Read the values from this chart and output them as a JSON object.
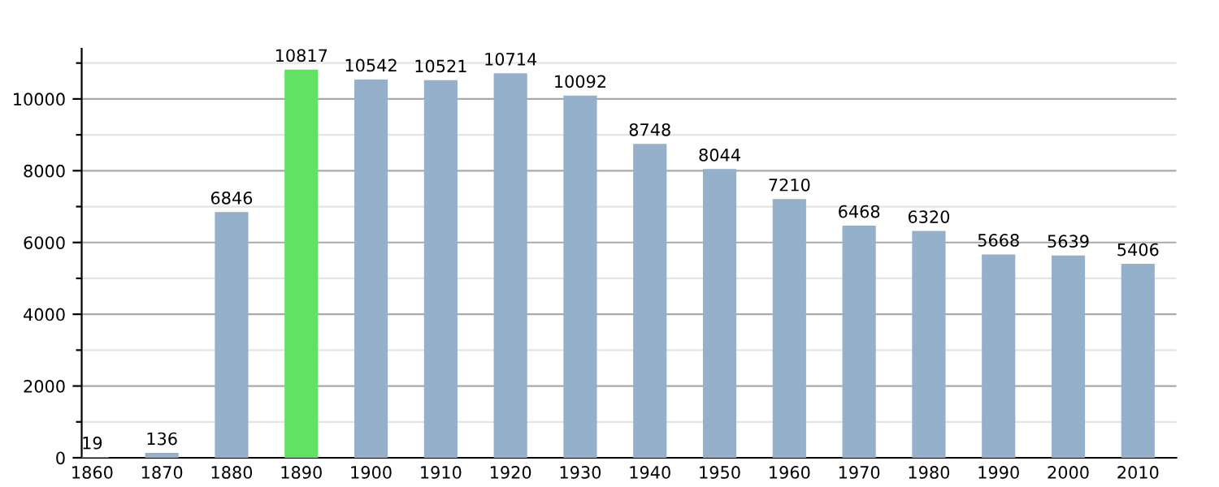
{
  "chart_data": {
    "type": "bar",
    "categories": [
      "1860",
      "1870",
      "1880",
      "1890",
      "1900",
      "1910",
      "1920",
      "1930",
      "1940",
      "1950",
      "1960",
      "1970",
      "1980",
      "1990",
      "2000",
      "2010"
    ],
    "values": [
      19,
      136,
      6846,
      10817,
      10542,
      10521,
      10714,
      10092,
      8748,
      8044,
      7210,
      6468,
      6320,
      5668,
      5639,
      5406
    ],
    "colors": [
      "#95b0cb",
      "#95b0cb",
      "#95b0cb",
      "#62e262",
      "#95b0cb",
      "#95b0cb",
      "#95b0cb",
      "#95b0cb",
      "#95b0cb",
      "#95b0cb",
      "#95b0cb",
      "#95b0cb",
      "#95b0cb",
      "#95b0cb",
      "#95b0cb",
      "#95b0cb"
    ],
    "data_labels": true,
    "ylim": [
      0,
      11400
    ],
    "yticks": [
      0,
      {
        "value": 1000,
        "label": null
      },
      2000,
      {
        "value": 3000,
        "label": null
      },
      4000,
      {
        "value": 5000,
        "label": null
      },
      6000,
      {
        "value": 7000,
        "label": null
      },
      8000,
      {
        "value": 9000,
        "label": null
      },
      10000,
      {
        "value": 11000,
        "label": null
      }
    ],
    "grid": "y"
  }
}
